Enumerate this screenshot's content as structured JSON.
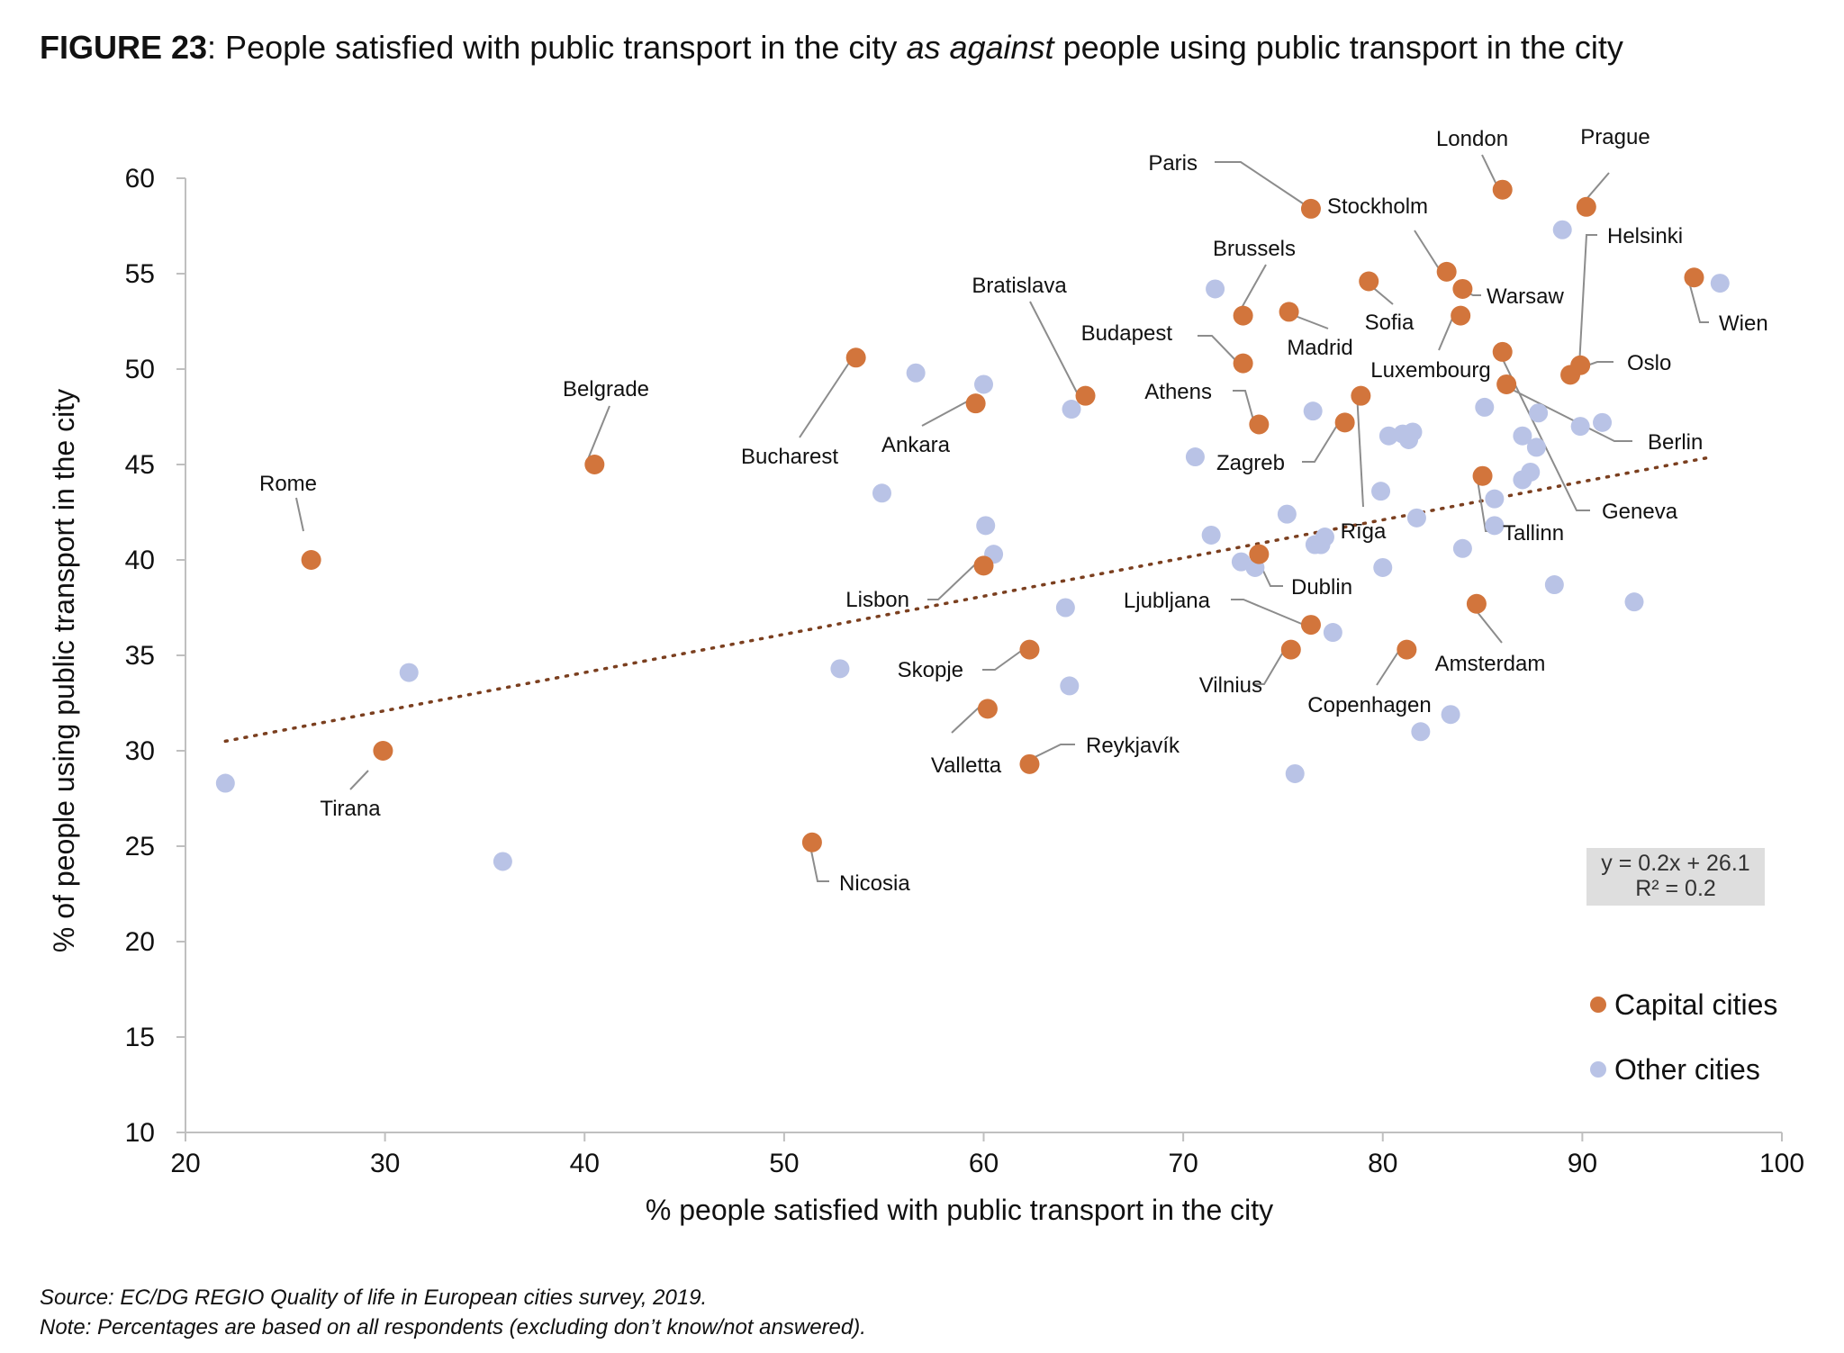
{
  "title": {
    "figure_label": "FIGURE 23",
    "part1": ": People satisfied with public transport in the city ",
    "emphasis": "as against",
    "part2": " people using public transport in the city"
  },
  "notes": {
    "source": "Source: EC/DG REGIO Quality of life in European cities survey, 2019.",
    "note": "Note: Percentages are based on all respondents (excluding don’t know/not answered)."
  },
  "colors": {
    "capital": "#d2753c",
    "other": "#b9c3e6",
    "trend": "#7b3f1f",
    "axis": "#bfbfbf"
  },
  "chart_data": {
    "type": "scatter",
    "xlabel": "% people satisfied with public transport in the city",
    "ylabel": "% of people using public transport  in the city",
    "xlim": [
      20,
      100
    ],
    "ylim": [
      10,
      60
    ],
    "xticks": [
      20,
      30,
      40,
      50,
      60,
      70,
      80,
      90,
      100
    ],
    "yticks": [
      10,
      15,
      20,
      25,
      30,
      35,
      40,
      45,
      50,
      55,
      60
    ],
    "legend_position": "bottom-right",
    "legend": [
      "Capital cities",
      "Other cities"
    ],
    "trendline": {
      "style": "dotted",
      "slope": 0.2,
      "intercept": 26.1,
      "x_range": [
        22,
        96.5
      ],
      "equation": "y = 0.2x + 26.1",
      "r2": "R² = 0.2"
    },
    "series": [
      {
        "name": "Capital cities",
        "points": [
          {
            "city": "Rome",
            "x": 26.3,
            "y": 40.0
          },
          {
            "city": "Tirana",
            "x": 29.9,
            "y": 30.0
          },
          {
            "city": "Belgrade",
            "x": 40.5,
            "y": 45.0
          },
          {
            "city": "Nicosia",
            "x": 51.4,
            "y": 25.2
          },
          {
            "city": "Bucharest",
            "x": 53.6,
            "y": 50.6
          },
          {
            "city": "Ankara",
            "x": 59.6,
            "y": 48.2
          },
          {
            "city": "Lisbon",
            "x": 60.0,
            "y": 39.7
          },
          {
            "city": "Valletta",
            "x": 60.2,
            "y": 32.2
          },
          {
            "city": "Skopje",
            "x": 62.3,
            "y": 35.3
          },
          {
            "city": "Reykjavík",
            "x": 62.3,
            "y": 29.3
          },
          {
            "city": "Bratislava",
            "x": 65.1,
            "y": 48.6
          },
          {
            "city": "Budapest",
            "x": 73.0,
            "y": 50.3
          },
          {
            "city": "Brussels",
            "x": 73.0,
            "y": 52.8
          },
          {
            "city": "Athens",
            "x": 73.8,
            "y": 47.1
          },
          {
            "city": "Dublin",
            "x": 73.8,
            "y": 40.3
          },
          {
            "city": "Madrid",
            "x": 75.3,
            "y": 53.0
          },
          {
            "city": "Vilnius",
            "x": 75.4,
            "y": 35.3
          },
          {
            "city": "Paris",
            "x": 76.4,
            "y": 58.4
          },
          {
            "city": "Ljubljana",
            "x": 76.4,
            "y": 36.6
          },
          {
            "city": "Zagreb",
            "x": 78.1,
            "y": 47.2
          },
          {
            "city": "Rīga",
            "x": 78.9,
            "y": 48.6
          },
          {
            "city": "Sofia",
            "x": 79.3,
            "y": 54.6
          },
          {
            "city": "Copenhagen",
            "x": 81.2,
            "y": 35.3
          },
          {
            "city": "Stockholm",
            "x": 83.2,
            "y": 55.1
          },
          {
            "city": "Warsaw",
            "x": 84.0,
            "y": 54.2
          },
          {
            "city": "Luxembourg",
            "x": 83.9,
            "y": 52.8
          },
          {
            "city": "Amsterdam",
            "x": 84.7,
            "y": 37.7
          },
          {
            "city": "Tallinn",
            "x": 85.0,
            "y": 44.4
          },
          {
            "city": "London",
            "x": 86.0,
            "y": 59.4
          },
          {
            "city": "Geneva",
            "x": 86.0,
            "y": 50.9
          },
          {
            "city": "Berlin",
            "x": 86.2,
            "y": 49.2
          },
          {
            "city": "Oslo",
            "x": 89.4,
            "y": 49.7
          },
          {
            "city": "Helsinki",
            "x": 89.9,
            "y": 50.2
          },
          {
            "city": "Prague",
            "x": 90.2,
            "y": 58.5
          },
          {
            "city": "Wien",
            "x": 95.6,
            "y": 54.8
          }
        ]
      },
      {
        "name": "Other cities",
        "points": [
          {
            "x": 22.0,
            "y": 28.3
          },
          {
            "x": 31.2,
            "y": 34.1
          },
          {
            "x": 35.9,
            "y": 24.2
          },
          {
            "x": 52.8,
            "y": 34.3
          },
          {
            "x": 54.9,
            "y": 43.5
          },
          {
            "x": 56.6,
            "y": 49.8
          },
          {
            "x": 60.0,
            "y": 49.2
          },
          {
            "x": 60.1,
            "y": 41.8
          },
          {
            "x": 60.5,
            "y": 40.3
          },
          {
            "x": 64.1,
            "y": 37.5
          },
          {
            "x": 64.3,
            "y": 33.4
          },
          {
            "x": 64.4,
            "y": 47.9
          },
          {
            "x": 70.6,
            "y": 45.4
          },
          {
            "x": 71.4,
            "y": 41.3
          },
          {
            "x": 71.6,
            "y": 54.2
          },
          {
            "x": 72.9,
            "y": 39.9
          },
          {
            "x": 73.6,
            "y": 39.6
          },
          {
            "x": 75.2,
            "y": 42.4
          },
          {
            "x": 75.6,
            "y": 28.8
          },
          {
            "x": 76.5,
            "y": 47.8
          },
          {
            "x": 76.6,
            "y": 40.8
          },
          {
            "x": 76.9,
            "y": 40.8
          },
          {
            "x": 77.1,
            "y": 41.2
          },
          {
            "x": 77.5,
            "y": 36.2
          },
          {
            "x": 79.9,
            "y": 43.6
          },
          {
            "x": 80.0,
            "y": 39.6
          },
          {
            "x": 80.3,
            "y": 46.5
          },
          {
            "x": 81.0,
            "y": 46.6
          },
          {
            "x": 81.3,
            "y": 46.3
          },
          {
            "x": 81.5,
            "y": 46.7
          },
          {
            "x": 81.7,
            "y": 42.2
          },
          {
            "x": 81.9,
            "y": 31.0
          },
          {
            "x": 83.4,
            "y": 31.9
          },
          {
            "x": 84.0,
            "y": 40.6
          },
          {
            "x": 85.1,
            "y": 48.0
          },
          {
            "x": 85.6,
            "y": 43.2
          },
          {
            "x": 85.6,
            "y": 41.8
          },
          {
            "x": 87.0,
            "y": 46.5
          },
          {
            "x": 87.0,
            "y": 44.2
          },
          {
            "x": 87.4,
            "y": 44.6
          },
          {
            "x": 87.7,
            "y": 45.9
          },
          {
            "x": 87.8,
            "y": 47.7
          },
          {
            "x": 88.6,
            "y": 38.7
          },
          {
            "x": 89.0,
            "y": 57.3
          },
          {
            "x": 89.9,
            "y": 47.0
          },
          {
            "x": 91.0,
            "y": 47.2
          },
          {
            "x": 92.6,
            "y": 37.8
          },
          {
            "x": 96.9,
            "y": 54.5
          }
        ]
      }
    ]
  }
}
